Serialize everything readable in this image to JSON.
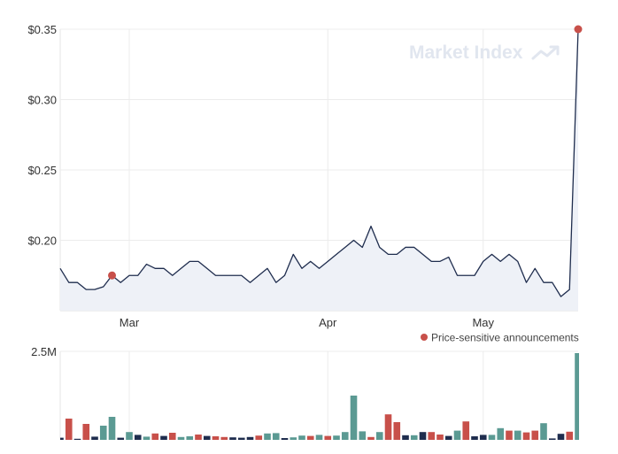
{
  "watermark": "Market Index",
  "chart_data": [
    {
      "type": "line",
      "title": "",
      "ylabel": "",
      "ylim": [
        0.15,
        0.35
      ],
      "y_ticks": [
        {
          "value": 0.2,
          "label": "$0.20"
        },
        {
          "value": 0.25,
          "label": "$0.25"
        },
        {
          "value": 0.3,
          "label": "$0.30"
        },
        {
          "value": 0.35,
          "label": "$0.35"
        }
      ],
      "x_ticks": [
        {
          "index": 8,
          "label": "Mar"
        },
        {
          "index": 31,
          "label": "Apr"
        },
        {
          "index": 49,
          "label": "May"
        }
      ],
      "grid": true,
      "line_color": "#1f2d4e",
      "area_color": "#eef1f7",
      "series": [
        {
          "values": [
            0.18,
            0.17,
            0.17,
            0.165,
            0.165,
            0.167,
            0.175,
            0.17,
            0.175,
            0.175,
            0.183,
            0.18,
            0.18,
            0.175,
            0.18,
            0.185,
            0.185,
            0.18,
            0.175,
            0.175,
            0.175,
            0.175,
            0.17,
            0.175,
            0.18,
            0.17,
            0.175,
            0.19,
            0.18,
            0.185,
            0.18,
            0.185,
            0.19,
            0.195,
            0.2,
            0.195,
            0.21,
            0.195,
            0.19,
            0.19,
            0.195,
            0.195,
            0.19,
            0.185,
            0.185,
            0.188,
            0.175,
            0.175,
            0.175,
            0.185,
            0.19,
            0.185,
            0.19,
            0.185,
            0.17,
            0.18,
            0.17,
            0.17,
            0.16,
            0.165,
            0.35
          ]
        }
      ],
      "announcements": [
        6,
        60
      ],
      "announcement_color": "#c8504a",
      "legend": {
        "label": "Price-sensitive announcements",
        "position": "bottom-right"
      }
    },
    {
      "type": "bar",
      "title": "",
      "ylim": [
        0,
        2500000
      ],
      "y_ticks": [
        {
          "value": 2500000,
          "label": "2.5M"
        }
      ],
      "grid": true,
      "colors": {
        "up": "#5b9a93",
        "down": "#c8504a",
        "flat": "#1f2d4e"
      },
      "values": [
        60000,
        600000,
        30000,
        450000,
        90000,
        400000,
        650000,
        60000,
        220000,
        140000,
        90000,
        180000,
        110000,
        200000,
        80000,
        100000,
        150000,
        110000,
        100000,
        80000,
        70000,
        60000,
        80000,
        120000,
        180000,
        190000,
        50000,
        70000,
        120000,
        110000,
        140000,
        110000,
        120000,
        220000,
        1250000,
        240000,
        80000,
        220000,
        720000,
        500000,
        130000,
        130000,
        220000,
        220000,
        150000,
        110000,
        260000,
        520000,
        100000,
        140000,
        140000,
        330000,
        260000,
        260000,
        210000,
        260000,
        470000,
        40000,
        170000,
        230000,
        2450000
      ],
      "directions": [
        "flat",
        "down",
        "flat",
        "down",
        "flat",
        "up",
        "up",
        "flat",
        "up",
        "flat",
        "up",
        "down",
        "flat",
        "down",
        "up",
        "up",
        "down",
        "flat",
        "down",
        "down",
        "flat",
        "flat",
        "flat",
        "down",
        "up",
        "up",
        "flat",
        "up",
        "up",
        "down",
        "up",
        "down",
        "up",
        "up",
        "up",
        "up",
        "down",
        "up",
        "down",
        "down",
        "flat",
        "up",
        "flat",
        "down",
        "down",
        "flat",
        "up",
        "down",
        "flat",
        "flat",
        "up",
        "up",
        "down",
        "up",
        "down",
        "down",
        "up",
        "flat",
        "flat",
        "down",
        "up"
      ]
    }
  ]
}
